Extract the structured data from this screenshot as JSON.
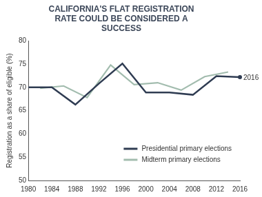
{
  "chart_data": {
    "type": "line",
    "title": "CALIFORNIA'S FLAT REGISTRATION RATE COULD BE CONSIDERED A SUCCESS",
    "y_label": "Registration as a share of eligible (%)",
    "xlim": [
      1980,
      2016
    ],
    "xticks": [
      1980,
      1984,
      1988,
      1992,
      1996,
      2000,
      2004,
      2008,
      2012,
      2016
    ],
    "ylim": [
      50,
      80
    ],
    "yticks": [
      50,
      55,
      60,
      65,
      70,
      75,
      80
    ],
    "grid": false,
    "legend": "lower right",
    "series": [
      {
        "name": "Presidential primary elections",
        "color": "#2f3c52",
        "x": [
          1980,
          1984,
          1988,
          1992,
          1996,
          2000,
          2004,
          2008,
          2012,
          2016
        ],
        "values": [
          70.0,
          70.0,
          66.3,
          70.8,
          75.1,
          68.9,
          68.9,
          68.4,
          72.4,
          72.2
        ]
      },
      {
        "name": "Midterm primary elections",
        "color": "#a2bcae",
        "x": [
          1982,
          1986,
          1990,
          1994,
          1998,
          2002,
          2006,
          2010,
          2014
        ],
        "values": [
          69.8,
          70.3,
          67.8,
          74.8,
          70.6,
          71.0,
          69.4,
          72.3,
          73.3
        ]
      }
    ],
    "annotations": [
      {
        "text": "2016",
        "x": 2016,
        "y": 72.2
      }
    ]
  }
}
